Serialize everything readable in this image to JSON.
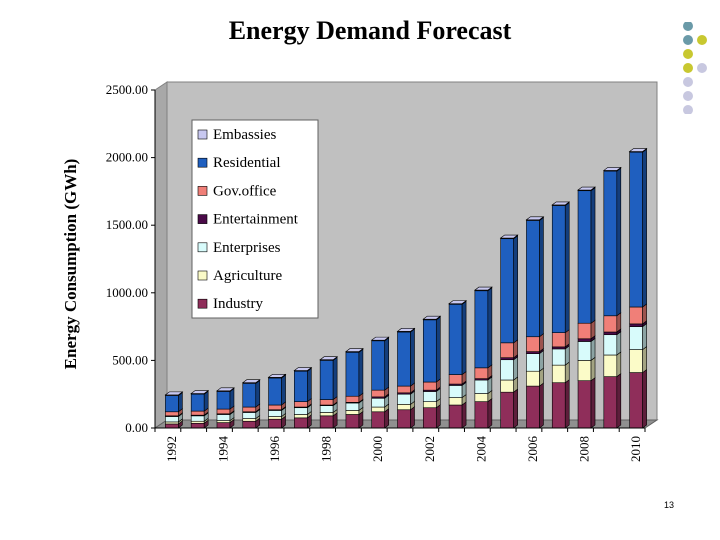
{
  "slide": {
    "title": "Energy Demand Forecast",
    "page_number": "13"
  },
  "colors": {
    "Embassies": "#c8c8f0",
    "Residential": "#1f5fbf",
    "Gov.office": "#f07f78",
    "Entertainment": "#4a0a48",
    "Enterprises": "#d8fbfb",
    "Agriculture": "#fbfbc8",
    "Industry": "#8f2e5a",
    "plot_background": "#c0c0c0",
    "decor_teal": "#6a9aa8",
    "decor_yellow": "#c8c830",
    "decor_lavender": "#c8c8e0"
  },
  "chart_data": {
    "type": "bar",
    "stacked": true,
    "three_d": true,
    "title": "Energy Demand Forecast",
    "ylabel": "Energy Consumption (GWh)",
    "xlabel": "",
    "ylim": [
      0,
      2500
    ],
    "yticks": [
      "0.00",
      "500.00",
      "1000.00",
      "1500.00",
      "2000.00",
      "2500.00"
    ],
    "grid": false,
    "legend_position": "top-left",
    "categories": [
      "1992",
      "1993",
      "1994",
      "1995",
      "1996",
      "1997",
      "1998",
      "1999",
      "2000",
      "2001",
      "2002",
      "2003",
      "2004",
      "2005",
      "2006",
      "2007",
      "2008",
      "2009",
      "2010"
    ],
    "xtick_labels": [
      "1992",
      "1994",
      "1996",
      "1998",
      "2000",
      "2002",
      "2004",
      "2006",
      "2008",
      "2010"
    ],
    "series": [
      {
        "name": "Industry",
        "values": [
          30,
          35,
          40,
          50,
          65,
          75,
          90,
          100,
          120,
          135,
          150,
          170,
          195,
          265,
          310,
          335,
          350,
          380,
          410
        ]
      },
      {
        "name": "Agriculture",
        "values": [
          15,
          15,
          15,
          20,
          20,
          25,
          25,
          30,
          35,
          40,
          45,
          55,
          60,
          90,
          110,
          130,
          150,
          160,
          170
        ]
      },
      {
        "name": "Enterprises",
        "values": [
          40,
          40,
          45,
          45,
          45,
          50,
          50,
          55,
          65,
          75,
          75,
          90,
          100,
          150,
          130,
          120,
          140,
          150,
          170
        ]
      },
      {
        "name": "Entertainment",
        "values": [
          5,
          5,
          5,
          5,
          5,
          5,
          5,
          5,
          10,
          10,
          10,
          10,
          10,
          15,
          15,
          15,
          20,
          20,
          20
        ]
      },
      {
        "name": "Gov.office",
        "values": [
          30,
          30,
          35,
          35,
          35,
          40,
          40,
          45,
          50,
          50,
          60,
          70,
          80,
          110,
          110,
          105,
          115,
          120,
          125
        ]
      },
      {
        "name": "Residential",
        "values": [
          120,
          125,
          130,
          175,
          200,
          225,
          290,
          325,
          365,
          400,
          460,
          520,
          570,
          770,
          860,
          940,
          980,
          1070,
          1145
        ]
      },
      {
        "name": "Embassies",
        "values": [
          5,
          5,
          5,
          5,
          5,
          5,
          5,
          5,
          5,
          5,
          5,
          5,
          5,
          5,
          5,
          5,
          5,
          5,
          5
        ]
      }
    ]
  }
}
